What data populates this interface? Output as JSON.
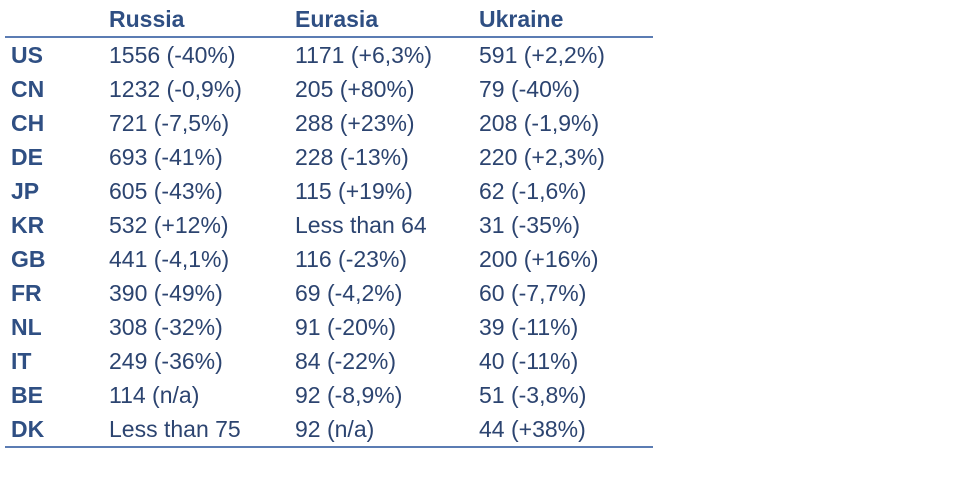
{
  "table": {
    "columns": [
      "",
      "Russia",
      "Eurasia",
      "Ukraine"
    ],
    "rows": [
      [
        "US",
        "1556 (-40%)",
        "1171 (+6,3%)",
        "591 (+2,2%)"
      ],
      [
        "CN",
        "1232 (-0,9%)",
        "205 (+80%)",
        "79 (-40%)"
      ],
      [
        "CH",
        "721 (-7,5%)",
        "288 (+23%)",
        "208 (-1,9%)"
      ],
      [
        "DE",
        "693 (-41%)",
        "228 (-13%)",
        "220 (+2,3%)"
      ],
      [
        "JP",
        "605 (-43%)",
        "115 (+19%)",
        "62 (-1,6%)"
      ],
      [
        "KR",
        "532 (+12%)",
        "Less than 64",
        "31 (-35%)"
      ],
      [
        "GB",
        "441 (-4,1%)",
        "116 (-23%)",
        "200 (+16%)"
      ],
      [
        "FR",
        "390 (-49%)",
        "69 (-4,2%)",
        "60 (-7,7%)"
      ],
      [
        "NL",
        "308 (-32%)",
        "91 (-20%)",
        "39 (-11%)"
      ],
      [
        "IT",
        "249 (-36%)",
        "84 (-22%)",
        "40 (-11%)"
      ],
      [
        "BE",
        "114 (n/a)",
        "92 (-8,9%)",
        "51 (-3,8%)"
      ],
      [
        "DK",
        "Less than 75",
        "92 (n/a)",
        "44 (+38%)"
      ]
    ]
  },
  "colors": {
    "header_text": "#2f4f83",
    "body_text": "#2c4470",
    "rule": "#5b7cb3"
  }
}
